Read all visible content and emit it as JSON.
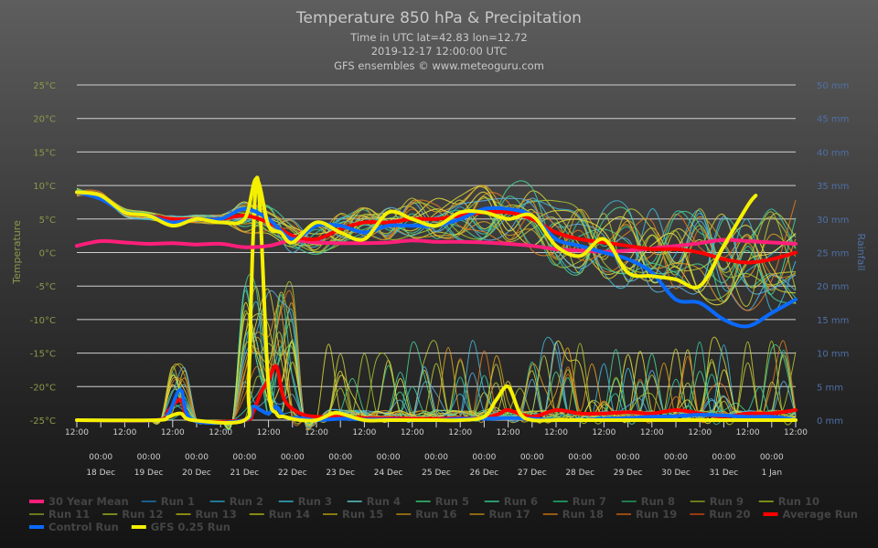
{
  "chart_data": {
    "type": "line",
    "title": "Temperature 850 hPa & Precipitation",
    "subtitle_lines": [
      "Time in UTC lat=42.83 lon=12.72",
      "2019-12-17 12:00:00 UTC",
      "GFS ensembles © www.meteoguru.com"
    ],
    "ylabel": "Temperature",
    "y2label": "Rainfall",
    "ylim": [
      -25,
      25
    ],
    "y2lim": [
      0,
      50
    ],
    "yticks": [
      "25°C",
      "20°C",
      "15°C",
      "10°C",
      "5°C",
      "0°C",
      "-5°C",
      "-10°C",
      "-15°C",
      "-20°C",
      "-25°C"
    ],
    "y2ticks": [
      "50 mm",
      "45 mm",
      "40 mm",
      "35 mm",
      "30 mm",
      "25 mm",
      "20 mm",
      "15 mm",
      "10 mm",
      "5 mm",
      "0 mm"
    ],
    "x_unit": "hours since 2019-12-17 12:00 UTC",
    "xlim": [
      0,
      360
    ],
    "xticks_time": "12:00",
    "day_time": "00:00",
    "day_labels": [
      "18 Dec",
      "19 Dec",
      "20 Dec",
      "21 Dec",
      "22 Dec",
      "23 Dec",
      "24 Dec",
      "25 Dec",
      "26 Dec",
      "27 Dec",
      "28 Dec",
      "29 Dec",
      "30 Dec",
      "31 Dec",
      "1 Jan"
    ],
    "grid": true,
    "legend_position": "bottom",
    "legend": [
      {
        "name": "30 Year Mean",
        "color": "#ff1f7a",
        "bold": true
      },
      {
        "name": "Run 1",
        "color": "#1a5f8a"
      },
      {
        "name": "Run 2",
        "color": "#1f7896"
      },
      {
        "name": "Run 3",
        "color": "#2b8a9a"
      },
      {
        "name": "Run 4",
        "color": "#4a9a9a"
      },
      {
        "name": "Run 5",
        "color": "#2a9a5a"
      },
      {
        "name": "Run 6",
        "color": "#2a9a6a"
      },
      {
        "name": "Run 7",
        "color": "#1f8a5a"
      },
      {
        "name": "Run 8",
        "color": "#1f7a50"
      },
      {
        "name": "Run 9",
        "color": "#6a7a1a"
      },
      {
        "name": "Run 10",
        "color": "#7a8a1a"
      },
      {
        "name": "Run 11",
        "color": "#6a7a1a"
      },
      {
        "name": "Run 12",
        "color": "#7a8a1a"
      },
      {
        "name": "Run 13",
        "color": "#8a8a10"
      },
      {
        "name": "Run 14",
        "color": "#8a8a10"
      },
      {
        "name": "Run 15",
        "color": "#8a7a10"
      },
      {
        "name": "Run 16",
        "color": "#8a6a10"
      },
      {
        "name": "Run 17",
        "color": "#8a6a10"
      },
      {
        "name": "Run 18",
        "color": "#9a5a10"
      },
      {
        "name": "Run 19",
        "color": "#9a4a10"
      },
      {
        "name": "Run 20",
        "color": "#9a3a10"
      },
      {
        "name": "Average Run",
        "color": "#ff0000",
        "bold": true
      },
      {
        "name": "Control Run",
        "color": "#0a6aff",
        "bold": true
      },
      {
        "name": "GFS 0.25 Run",
        "color": "#f5f000",
        "bold": true
      }
    ],
    "series": [
      {
        "name": "30 Year Mean",
        "axis": "temp",
        "x": [
          0,
          12,
          24,
          36,
          48,
          60,
          72,
          84,
          96,
          108,
          120,
          132,
          144,
          156,
          168,
          180,
          192,
          204,
          216,
          228,
          240,
          252,
          264,
          276,
          288,
          300,
          312,
          324,
          336,
          348,
          360
        ],
        "values": [
          1,
          1.7,
          1.5,
          1.3,
          1.4,
          1.2,
          1.3,
          0.8,
          1,
          1.8,
          1.5,
          1.4,
          1.4,
          1.5,
          1.8,
          1.6,
          1.6,
          1.5,
          1.3,
          1,
          0.5,
          0.3,
          0.1,
          0.3,
          0.6,
          1,
          1.4,
          1.9,
          1.7,
          1.5,
          1.3
        ]
      },
      {
        "name": "Average Run",
        "axis": "temp",
        "x": [
          0,
          12,
          24,
          36,
          48,
          60,
          72,
          84,
          96,
          108,
          120,
          132,
          144,
          156,
          168,
          180,
          192,
          204,
          216,
          228,
          240,
          252,
          264,
          276,
          288,
          300,
          312,
          324,
          336,
          348,
          360
        ],
        "values": [
          9,
          8.5,
          6,
          5.5,
          5,
          5,
          5,
          5.5,
          4.5,
          2.5,
          2,
          3.5,
          4.5,
          4.5,
          5,
          5,
          5.5,
          6,
          6,
          5,
          3,
          2,
          1.5,
          1,
          0.5,
          0.5,
          0,
          -1,
          -1.5,
          -1,
          0
        ]
      },
      {
        "name": "Control Run",
        "axis": "temp",
        "x": [
          0,
          12,
          24,
          36,
          48,
          60,
          72,
          84,
          96,
          108,
          120,
          132,
          144,
          156,
          168,
          180,
          192,
          204,
          216,
          228,
          240,
          252,
          264,
          276,
          288,
          300,
          312,
          324,
          336,
          348,
          360
        ],
        "values": [
          9,
          8,
          6,
          5.5,
          4.5,
          5,
          5,
          6.5,
          5,
          2,
          4,
          4,
          3,
          4,
          4,
          4,
          5,
          6.5,
          6.5,
          5.5,
          2,
          1,
          0,
          -1,
          -3,
          -7,
          -7.5,
          -10,
          -11,
          -9,
          -7
        ]
      },
      {
        "name": "GFS 0.25 Run",
        "axis": "temp",
        "x": [
          0,
          12,
          24,
          36,
          48,
          60,
          72,
          84,
          90,
          96,
          102,
          108,
          120,
          132,
          144,
          156,
          168,
          180,
          192,
          204,
          216,
          228,
          240,
          252,
          264,
          276,
          288,
          300,
          312,
          324,
          336,
          340
        ],
        "values": [
          9,
          8.5,
          6,
          5.5,
          4,
          5,
          4.5,
          5,
          11,
          4,
          3,
          1.5,
          4.5,
          3,
          2,
          6,
          5,
          4,
          6,
          6,
          5,
          5.5,
          1,
          -0.5,
          2,
          -3,
          -3.5,
          -4,
          -5,
          1,
          7,
          8.5
        ]
      },
      {
        "name": "Average Run",
        "axis": "rain",
        "x": [
          0,
          40,
          46,
          52,
          58,
          84,
          88,
          92,
          96,
          100,
          104,
          112,
          120,
          132,
          144,
          156,
          168,
          180,
          192,
          204,
          212,
          216,
          228,
          240,
          252,
          264,
          276,
          288,
          300,
          312,
          324,
          336,
          348,
          360
        ],
        "values": [
          0,
          0,
          1.5,
          3,
          0,
          0,
          1,
          4,
          6,
          8,
          3,
          1,
          0.5,
          0.5,
          0.3,
          0.3,
          0.2,
          0.2,
          0.3,
          0.3,
          1,
          1.5,
          0.5,
          1.5,
          1,
          1,
          1.2,
          1,
          1.5,
          1,
          0.5,
          1,
          1,
          1.5
        ]
      },
      {
        "name": "Control Run",
        "axis": "rain",
        "x": [
          0,
          40,
          46,
          52,
          58,
          84,
          88,
          92,
          96,
          100,
          104,
          112,
          120,
          132,
          144,
          156,
          168,
          180,
          192,
          204,
          216,
          228,
          240,
          252,
          264,
          276,
          288,
          300,
          312,
          324,
          336,
          348,
          360
        ],
        "values": [
          0,
          0,
          1,
          4.5,
          0,
          0,
          2,
          1.5,
          1,
          2,
          0.5,
          0.3,
          0,
          0.2,
          0.1,
          0.1,
          0,
          0,
          0.2,
          0.2,
          0.3,
          0.2,
          0,
          0,
          0.2,
          0.3,
          0.5,
          0.6,
          0.8,
          0.7,
          0.5,
          0.5,
          0
        ]
      },
      {
        "name": "GFS 0.25 Run",
        "axis": "rain",
        "x": [
          0,
          40,
          46,
          52,
          58,
          84,
          86,
          88,
          90,
          92,
          96,
          100,
          104,
          112,
          120,
          128,
          132,
          144,
          156,
          168,
          180,
          192,
          204,
          210,
          216,
          222,
          228,
          240,
          252,
          264,
          276,
          288,
          300,
          312,
          324,
          336,
          348,
          360
        ],
        "values": [
          0,
          0,
          0.5,
          1,
          0,
          0,
          5,
          25,
          36,
          30,
          5,
          1,
          0.5,
          0,
          0,
          1,
          1,
          0,
          0,
          0,
          0,
          0,
          0.5,
          3,
          5,
          1,
          0,
          0,
          0,
          0,
          0,
          0,
          0,
          0,
          0,
          0,
          0,
          0
        ]
      }
    ]
  }
}
